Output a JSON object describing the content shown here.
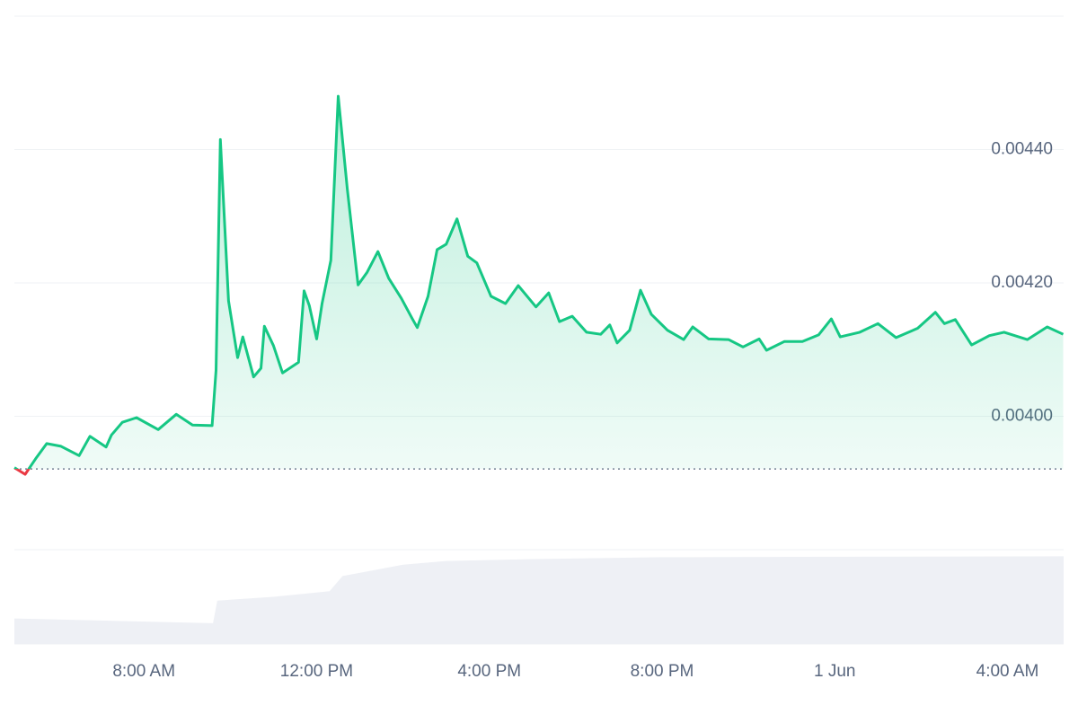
{
  "chart_data": [
    {
      "type": "line",
      "x": [
        5.0,
        5.25,
        5.5,
        5.75,
        6.08,
        6.5,
        6.75,
        7.125,
        7.25,
        7.5,
        7.83,
        8.33,
        8.75,
        9.125,
        9.58,
        9.67,
        9.77,
        9.96,
        10.17,
        10.29,
        10.54,
        10.71,
        10.79,
        11.0,
        11.21,
        11.58,
        11.71,
        11.83,
        12.0,
        12.125,
        12.33,
        12.5,
        12.71,
        12.96,
        13.17,
        13.42,
        13.67,
        13.96,
        14.21,
        14.33,
        14.58,
        14.79,
        15.0,
        15.25,
        15.5,
        15.71,
        16.04,
        16.375,
        16.67,
        17.08,
        17.375,
        17.625,
        17.92,
        18.25,
        18.58,
        18.79,
        18.96,
        19.25,
        19.5,
        19.75,
        20.125,
        20.5,
        20.71,
        21.08,
        21.54,
        21.875,
        22.25,
        22.42,
        22.83,
        23.25,
        23.625,
        23.92,
        24.125,
        24.58,
        25.0,
        25.42,
        25.92,
        26.33,
        26.54,
        26.79,
        27.17,
        27.58,
        27.92,
        28.46,
        28.92,
        29.29
      ],
      "values": [
        0.003923,
        0.003913,
        0.003937,
        0.003959,
        0.003955,
        0.003941,
        0.00397,
        0.003954,
        0.003972,
        0.003991,
        0.003998,
        0.00398,
        0.004003,
        0.003987,
        0.003986,
        0.004069,
        0.004415,
        0.004173,
        0.004088,
        0.004119,
        0.004059,
        0.004072,
        0.004135,
        0.004106,
        0.004065,
        0.004081,
        0.004188,
        0.004166,
        0.004116,
        0.004169,
        0.004234,
        0.00448,
        0.004341,
        0.004197,
        0.004216,
        0.004247,
        0.004207,
        0.004177,
        0.004147,
        0.004133,
        0.00418,
        0.00425,
        0.004258,
        0.004296,
        0.00424,
        0.00423,
        0.00418,
        0.004169,
        0.004196,
        0.004164,
        0.004185,
        0.004142,
        0.00415,
        0.004126,
        0.004123,
        0.004137,
        0.00411,
        0.004129,
        0.004189,
        0.004153,
        0.004129,
        0.004115,
        0.004134,
        0.004116,
        0.004115,
        0.004104,
        0.004116,
        0.004099,
        0.004112,
        0.004112,
        0.004122,
        0.004146,
        0.004119,
        0.004126,
        0.004139,
        0.004118,
        0.004132,
        0.004156,
        0.004139,
        0.004145,
        0.004107,
        0.004121,
        0.004126,
        0.004115,
        0.004134,
        0.004123
      ],
      "color": "#16c784",
      "down_color": "#ea3943",
      "baseline": 0.003921,
      "xlim": [
        5,
        29.3
      ],
      "xticks": [
        {
          "value": 8,
          "label": "8:00 AM"
        },
        {
          "value": 12,
          "label": "12:00 PM"
        },
        {
          "value": 16,
          "label": "4:00 PM"
        },
        {
          "value": 20,
          "label": "8:00 PM"
        },
        {
          "value": 24,
          "label": "1 Jun"
        },
        {
          "value": 28,
          "label": "4:00 AM"
        }
      ],
      "ylim": [
        0.0038,
        0.0046
      ],
      "yticks": [
        {
          "value": 0.004,
          "label": "0.00400"
        },
        {
          "value": 0.0042,
          "label": "0.00420"
        },
        {
          "value": 0.0044,
          "label": "0.00440"
        }
      ],
      "grid": true
    },
    {
      "type": "area",
      "x": [
        5,
        9.6,
        9.7,
        11,
        12.3,
        12.6,
        14,
        15,
        17,
        20,
        29.3
      ],
      "values": [
        27,
        22,
        46,
        50,
        56,
        72,
        84,
        88,
        90,
        92,
        93
      ],
      "color": "#eef0f5",
      "xlim": [
        5,
        29.3
      ],
      "ylim": [
        0,
        100
      ]
    }
  ]
}
